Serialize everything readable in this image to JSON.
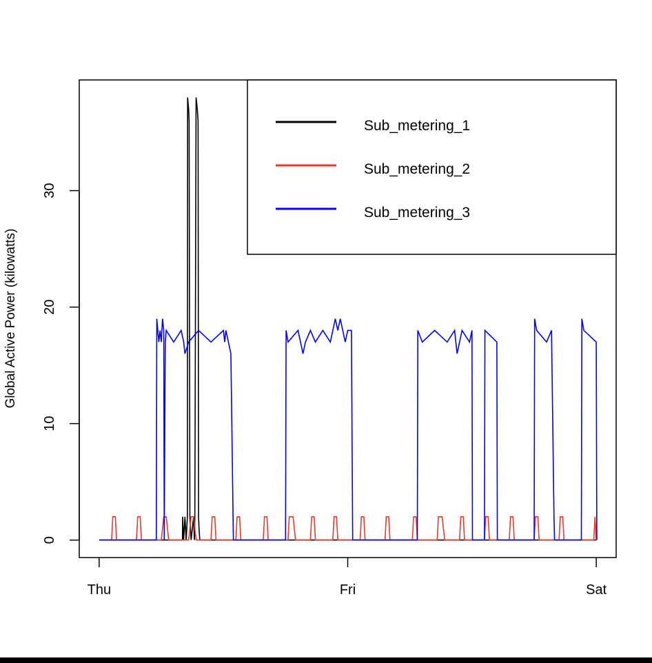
{
  "chart_data": {
    "type": "line",
    "title": "",
    "xlabel": "",
    "ylabel": "Global Active Power (kilowatts)",
    "x_unit": "days since Thu 00:00",
    "xlim": [
      -0.08,
      2.08
    ],
    "ylim": [
      -1.5,
      39.5
    ],
    "x_ticks": [
      {
        "value": 0,
        "label": "Thu"
      },
      {
        "value": 1,
        "label": "Fri"
      },
      {
        "value": 2,
        "label": "Sat"
      }
    ],
    "y_ticks": [
      {
        "value": 0,
        "label": "0"
      },
      {
        "value": 10,
        "label": "10"
      },
      {
        "value": 20,
        "label": "20"
      },
      {
        "value": 30,
        "label": "30"
      }
    ],
    "legend": {
      "position": "top-right",
      "entries": [
        {
          "name": "Sub_metering_1",
          "color": "#000000"
        },
        {
          "name": "Sub_metering_2",
          "color": "#e8392c"
        },
        {
          "name": "Sub_metering_3",
          "color": "#0000ff"
        }
      ]
    },
    "series": [
      {
        "name": "Sub_metering_1",
        "color": "#000000",
        "x": [
          0,
          0.335,
          0.336,
          0.34,
          0.345,
          0.35,
          0.355,
          0.356,
          0.36,
          0.362,
          0.365,
          0.37,
          0.38,
          0.383,
          0.385,
          0.39,
          0.395,
          0.398,
          0.4,
          0.402,
          0.405,
          0.41,
          0.42,
          0.5,
          2.0
        ],
        "y": [
          0,
          0,
          2,
          0,
          2,
          0,
          2,
          38,
          37,
          36,
          2,
          0,
          2,
          0,
          2,
          38,
          37,
          36,
          2,
          1,
          0,
          0,
          0,
          0,
          0
        ]
      },
      {
        "name": "Sub_metering_2",
        "color": "#e8392c",
        "x": [
          0,
          0.05,
          0.055,
          0.065,
          0.07,
          0.15,
          0.155,
          0.165,
          0.17,
          0.25,
          0.26,
          0.27,
          0.28,
          0.36,
          0.37,
          0.38,
          0.39,
          0.45,
          0.455,
          0.465,
          0.47,
          0.55,
          0.555,
          0.565,
          0.57,
          0.66,
          0.665,
          0.675,
          0.68,
          0.76,
          0.765,
          0.78,
          0.79,
          0.85,
          0.855,
          0.865,
          0.87,
          0.94,
          0.945,
          0.955,
          0.96,
          1.05,
          1.055,
          1.065,
          1.07,
          1.15,
          1.155,
          1.165,
          1.17,
          1.26,
          1.265,
          1.275,
          1.28,
          1.36,
          1.365,
          1.38,
          1.39,
          1.45,
          1.455,
          1.465,
          1.47,
          1.55,
          1.555,
          1.565,
          1.57,
          1.65,
          1.655,
          1.665,
          1.67,
          1.75,
          1.755,
          1.765,
          1.77,
          1.85,
          1.855,
          1.865,
          1.87,
          1.99,
          1.995,
          2.0
        ],
        "y": [
          0,
          0,
          2,
          2,
          0,
          0,
          2,
          2,
          0,
          0,
          2,
          2,
          0,
          0,
          2,
          2,
          0,
          0,
          2,
          2,
          0,
          0,
          2,
          2,
          0,
          0,
          2,
          2,
          0,
          0,
          2,
          2,
          0,
          0,
          2,
          2,
          0,
          0,
          2,
          2,
          0,
          0,
          2,
          2,
          0,
          0,
          2,
          2,
          0,
          0,
          2,
          2,
          0,
          0,
          2,
          2,
          0,
          0,
          2,
          2,
          0,
          0,
          2,
          2,
          0,
          0,
          2,
          2,
          0,
          0,
          2,
          2,
          0,
          0,
          2,
          2,
          0,
          0,
          2,
          0
        ]
      },
      {
        "name": "Sub_metering_3",
        "color": "#0000ff",
        "x": [
          0,
          0.23,
          0.232,
          0.24,
          0.245,
          0.25,
          0.255,
          0.26,
          0.262,
          0.266,
          0.27,
          0.3,
          0.33,
          0.34,
          0.345,
          0.36,
          0.4,
          0.45,
          0.5,
          0.505,
          0.51,
          0.52,
          0.53,
          0.54,
          0.75,
          0.752,
          0.76,
          0.8,
          0.82,
          0.83,
          0.85,
          0.87,
          0.9,
          0.93,
          0.94,
          0.95,
          0.96,
          0.97,
          0.98,
          0.99,
          1.0,
          1.015,
          1.02,
          1.28,
          1.282,
          1.3,
          1.35,
          1.4,
          1.43,
          1.44,
          1.45,
          1.46,
          1.49,
          1.5,
          1.502,
          1.55,
          1.552,
          1.6,
          1.602,
          1.75,
          1.752,
          1.76,
          1.8,
          1.82,
          1.83,
          1.832,
          1.84,
          1.845,
          1.85,
          1.94,
          1.942,
          1.95,
          2.0,
          2.002
        ],
        "y": [
          0,
          0,
          19,
          17,
          18,
          17,
          19,
          18,
          0,
          17,
          18,
          17,
          18,
          17,
          16,
          17,
          18,
          17,
          18,
          17,
          18,
          17,
          16,
          0,
          0,
          18,
          17,
          18,
          16,
          17,
          18,
          17,
          18,
          17,
          18,
          19,
          18,
          19,
          18,
          17,
          18,
          18,
          0,
          0,
          18,
          17,
          18,
          17,
          18,
          16,
          17,
          18,
          17,
          18,
          0,
          0,
          18,
          17,
          0,
          0,
          19,
          18,
          17,
          18,
          2,
          0,
          0,
          0,
          0,
          0,
          19,
          18,
          17,
          0
        ]
      }
    ]
  }
}
